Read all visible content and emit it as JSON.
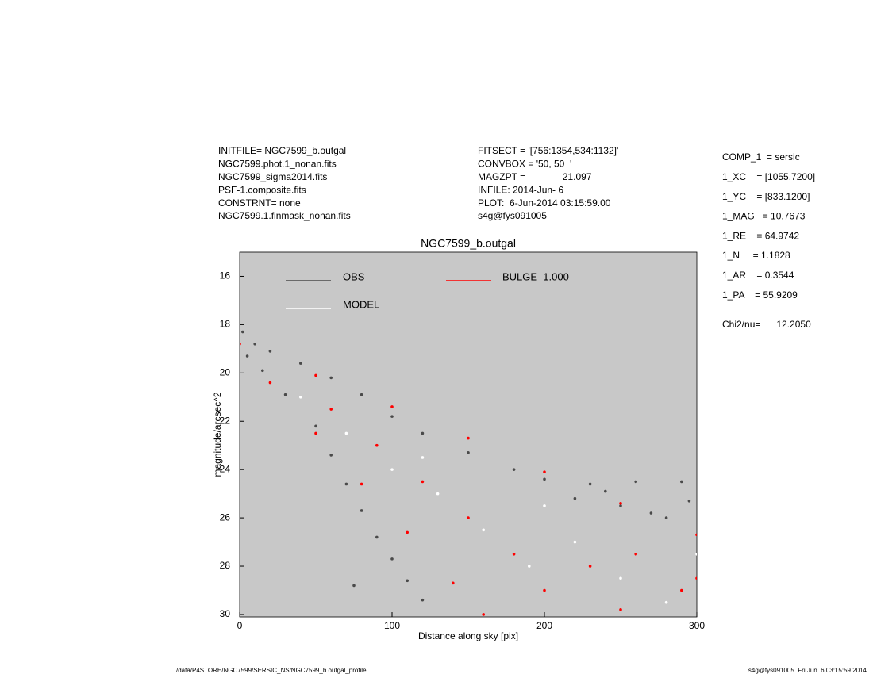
{
  "chart_data": {
    "type": "scatter",
    "title": "NGC7599_b.outgal",
    "xlabel": "Distance along sky [pix]",
    "ylabel": "magnitude/arcsec^2",
    "xlim": [
      0,
      300
    ],
    "xticks": [
      0,
      100,
      200,
      300
    ],
    "ylim": [
      15,
      30.1
    ],
    "yticks": [
      16,
      18,
      20,
      22,
      24,
      26,
      28,
      30
    ],
    "y_inverted": true,
    "background": "#c8c8c8",
    "series": [
      {
        "name": "OBS",
        "color": "#4a4a4a",
        "x": [
          2,
          10,
          20,
          40,
          60,
          80,
          100,
          120,
          150,
          180,
          200,
          230,
          260,
          290,
          5,
          15,
          30,
          50,
          60,
          70,
          80,
          90,
          100,
          110,
          75,
          120,
          220,
          250,
          280,
          295,
          240,
          270
        ],
        "values": [
          18.3,
          18.8,
          19.1,
          19.6,
          20.2,
          20.9,
          21.8,
          22.5,
          23.3,
          24.0,
          24.4,
          24.6,
          24.5,
          24.5,
          19.3,
          19.9,
          20.9,
          22.2,
          23.4,
          24.6,
          25.7,
          26.8,
          27.7,
          28.6,
          28.8,
          29.4,
          25.2,
          25.5,
          26.0,
          25.3,
          24.9,
          25.8
        ]
      },
      {
        "name": "MODEL",
        "color": "#ffffff",
        "x": [
          40,
          70,
          100,
          130,
          160,
          190,
          220,
          250,
          280,
          300,
          120,
          200
        ],
        "values": [
          21.0,
          22.5,
          24.0,
          25.0,
          26.5,
          28.0,
          27.0,
          28.5,
          29.5,
          27.5,
          23.5,
          25.5
        ]
      },
      {
        "name": "BULGE  1.000",
        "color": "#ff0000",
        "x": [
          0,
          50,
          100,
          150,
          200,
          250,
          300,
          20,
          50,
          80,
          110,
          140,
          160,
          60,
          90,
          120,
          150,
          180,
          200,
          230,
          260,
          290,
          250,
          300
        ],
        "values": [
          18.8,
          20.1,
          21.4,
          22.7,
          24.1,
          25.4,
          26.7,
          20.4,
          22.5,
          24.6,
          26.6,
          28.7,
          30.0,
          21.5,
          23.0,
          24.5,
          26.0,
          27.5,
          29.0,
          28.0,
          27.5,
          29.0,
          29.8,
          28.5
        ]
      }
    ]
  },
  "info": {
    "left": [
      "INITFILE= NGC7599_b.outgal",
      "NGC7599.phot.1_nonan.fits",
      "NGC7599_sigma2014.fits",
      "PSF-1.composite.fits",
      "CONSTRNT= none",
      "NGC7599.1.finmask_nonan.fits"
    ],
    "middle": [
      "FITSECT = '[756:1354,534:1132]'",
      "CONVBOX = '50, 50  '",
      "MAGZPT =              21.097",
      "INFILE: 2014-Jun- 6",
      "PLOT:  6-Jun-2014 03:15:59.00",
      "s4g@fys091005"
    ],
    "params": [
      "COMP_1  = sersic",
      "1_XC    = [1055.7200]",
      "1_YC    = [833.1200]",
      "1_MAG   = 10.7673",
      "1_RE    = 64.9742",
      "1_N     = 1.1828",
      "1_AR    = 0.3544",
      "1_PA    = 55.9209"
    ],
    "chi2": "Chi2/nu=      12.2050",
    "footer_left": "/data/P4STORE/NGC7599/SERSIC_NS/NGC7599_b.outgal_profile",
    "footer_right": "s4g@fys091005  Fri Jun  6 03:15:59 2014"
  }
}
